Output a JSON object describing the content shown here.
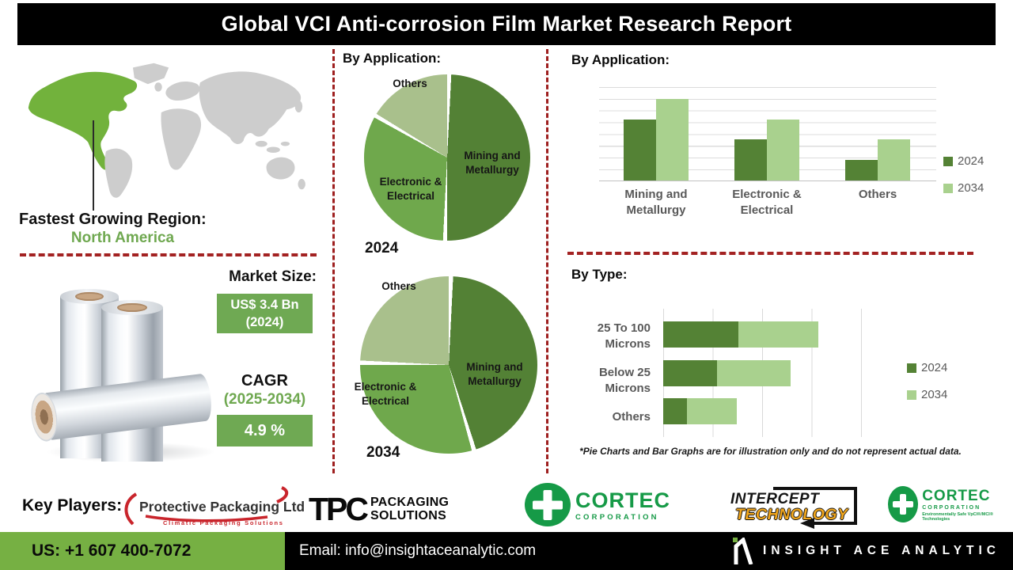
{
  "header": {
    "title": "Global VCI Anti-corrosion Film Market Research Report"
  },
  "region": {
    "label": "Fastest Growing Region:",
    "value": "North America"
  },
  "market": {
    "size_label": "Market Size:",
    "size_value": "US$ 3.4 Bn",
    "size_year": "(2024)",
    "cagr_label": "CAGR",
    "cagr_period": "(2025-2034)",
    "cagr_value": "4.9 %"
  },
  "sections": {
    "pie_title": "By Application:",
    "bar_title": "By Application:",
    "type_title": "By Type:"
  },
  "footnote": "*Pie Charts and Bar Graphs are for illustration only and do not represent actual data.",
  "key_players": {
    "label": "Key Players:",
    "logos": [
      {
        "name": "Protective Packaging Ltd",
        "tagline": "Climatic Packaging Solutions"
      },
      {
        "name": "TPC",
        "line1": "PACKAGING",
        "line2": "SOLUTIONS"
      },
      {
        "name": "CORTEC",
        "sub": "CORPORATION"
      },
      {
        "name": "INTERCEPT",
        "sub": "TECHNOLOGY"
      },
      {
        "name": "CORTEC",
        "sub": "CORPORATION",
        "tagline": "Environmentally Safe VpCI®/MCI® Technologies"
      }
    ]
  },
  "footer": {
    "phone": "US: +1 607 400-7072",
    "email": "Email: info@insightaceanalytic.com",
    "brand": "INSIGHT ACE ANALYTIC"
  },
  "colors": {
    "dark_green": "#548235",
    "medium_green": "#6fa84c",
    "light_green": "#a9d18e",
    "accent_green": "#6fa850",
    "box_green": "#6fa953",
    "footer_green": "#76b043",
    "map_green": "#72b23c",
    "map_gray": "#cdcdcd",
    "dashed_red": "#a32222",
    "cortec_green": "#169a47",
    "intercept_orange": "#f2a71d"
  },
  "chart_data": [
    {
      "type": "pie",
      "title": "By Application:",
      "year_label": "2024",
      "labels": [
        "Mining and Metallurgy",
        "Electronic & Electrical",
        "Others"
      ],
      "values": [
        50,
        33,
        17
      ],
      "colors": [
        "#538135",
        "#6fa84c",
        "#a9c08c"
      ]
    },
    {
      "type": "pie",
      "title": "By Application:",
      "year_label": "2034",
      "labels": [
        "Mining and Metallurgy",
        "Electronic & Electrical",
        "Others"
      ],
      "values": [
        45,
        30,
        25
      ],
      "colors": [
        "#538135",
        "#6fa84c",
        "#a9c08c"
      ]
    },
    {
      "type": "bar",
      "title": "By Application:",
      "categories": [
        "Mining and Metallurgy",
        "Electronic & Electrical",
        "Others"
      ],
      "series": [
        {
          "name": "2024",
          "color": "#548235",
          "values": [
            65,
            44,
            22
          ]
        },
        {
          "name": "2034",
          "color": "#a9d18e",
          "values": [
            87,
            65,
            44
          ]
        }
      ],
      "ylim": [
        0,
        100
      ],
      "grid": true,
      "legend_position": "right",
      "note": "illustrative values, no numeric axis labels shown"
    },
    {
      "type": "bar",
      "subtype": "horizontal-stacked",
      "title": "By Type:",
      "categories": [
        "25 To 100 Microns",
        "Below 25 Microns",
        "Others"
      ],
      "series": [
        {
          "name": "2024",
          "color": "#548235",
          "values": [
            38,
            27,
            12
          ]
        },
        {
          "name": "2034",
          "color": "#a9d18e",
          "values": [
            40,
            37,
            25
          ]
        }
      ],
      "xlim": [
        0,
        100
      ],
      "grid": true,
      "legend_position": "right",
      "note": "illustrative values, no numeric axis labels shown"
    }
  ]
}
